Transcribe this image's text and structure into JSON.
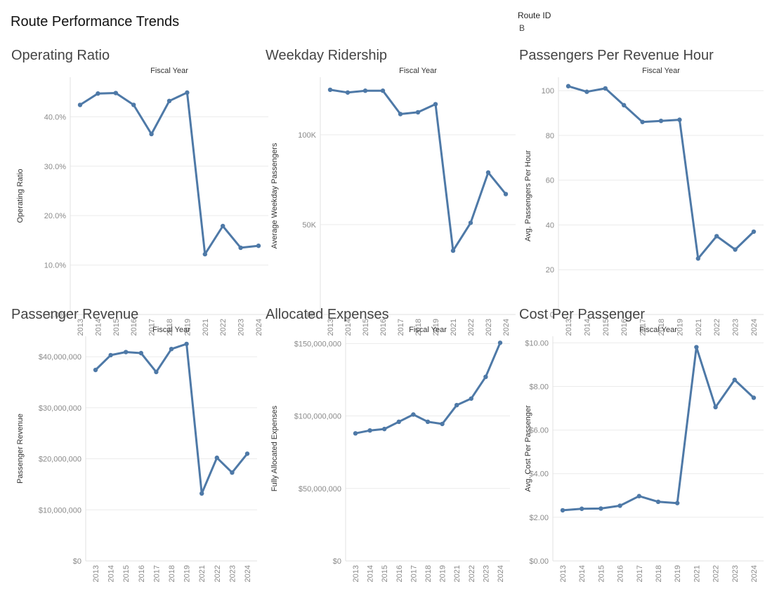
{
  "dashboard": {
    "title": "Route Performance Trends",
    "filter_label": "Route ID",
    "filter_value": "B"
  },
  "colors": {
    "series": "#4e79a7"
  },
  "chart_data": [
    {
      "id": "operating-ratio",
      "type": "line",
      "title": "Operating Ratio",
      "column_header": "Fiscal Year",
      "ylabel": "Operating Ratio",
      "x": [
        "2013",
        "2014",
        "2015",
        "2016",
        "2017",
        "2018",
        "2019",
        "2021",
        "2022",
        "2023",
        "2024"
      ],
      "values": [
        42.4,
        44.7,
        44.8,
        42.4,
        36.5,
        43.2,
        44.9,
        12.2,
        17.9,
        13.5,
        13.9
      ],
      "yticks": [
        0,
        10,
        20,
        30,
        40
      ],
      "ytick_labels": [
        "0.0%",
        "10.0%",
        "20.0%",
        "30.0%",
        "40.0%"
      ],
      "ylim": [
        0,
        48
      ]
    },
    {
      "id": "weekday-ridership",
      "type": "line",
      "title": "Weekday Ridership",
      "column_header": "Fiscal Year",
      "ylabel": "Average Weekday Passengers",
      "x": [
        "2013",
        "2014",
        "2015",
        "2016",
        "2017",
        "2018",
        "2019",
        "2021",
        "2022",
        "2023",
        "2024"
      ],
      "values": [
        125000,
        123500,
        124500,
        124500,
        111500,
        112500,
        117000,
        35500,
        51000,
        79000,
        67000
      ],
      "yticks": [
        0,
        50000,
        100000
      ],
      "ytick_labels": [
        "0K",
        "50K",
        "100K"
      ],
      "ylim": [
        0,
        132000
      ]
    },
    {
      "id": "passengers-per-revenue-hour",
      "type": "line",
      "title": "Passengers Per Revenue Hour",
      "column_header": "Fiscal Year",
      "ylabel": "Avg. Passengers Per Hour",
      "x": [
        "2013",
        "2014",
        "2015",
        "2016",
        "2017",
        "2018",
        "2019",
        "2021",
        "2022",
        "2023",
        "2024"
      ],
      "values": [
        102,
        99.5,
        101,
        93.5,
        86,
        86.5,
        87,
        25,
        35,
        29,
        37
      ],
      "yticks": [
        0,
        20,
        40,
        60,
        80,
        100
      ],
      "ytick_labels": [
        "0",
        "20",
        "40",
        "60",
        "80",
        "100"
      ],
      "ylim": [
        0,
        106
      ]
    },
    {
      "id": "passenger-revenue",
      "type": "line",
      "title": "Passenger Revenue",
      "column_header": "Fiscal Year",
      "ylabel": "Passenger Revenue",
      "x": [
        "2013",
        "2014",
        "2015",
        "2016",
        "2017",
        "2018",
        "2019",
        "2021",
        "2022",
        "2023",
        "2024"
      ],
      "values": [
        37400000,
        40300000,
        40900000,
        40700000,
        37000000,
        41500000,
        42500000,
        13200000,
        20200000,
        17300000,
        21000000
      ],
      "yticks": [
        0,
        10000000,
        20000000,
        30000000,
        40000000
      ],
      "ytick_labels": [
        "$0",
        "$10,000,000",
        "$20,000,000",
        "$30,000,000",
        "$40,000,000"
      ],
      "ylim": [
        0,
        44000000
      ]
    },
    {
      "id": "allocated-expenses",
      "type": "line",
      "title": "Allocated Expenses",
      "column_header": "Fiscal Year",
      "ylabel": "Fully Allocated Expenses",
      "x": [
        "2013",
        "2014",
        "2015",
        "2016",
        "2017",
        "2018",
        "2019",
        "2021",
        "2022",
        "2023",
        "2024"
      ],
      "values": [
        88000000,
        90000000,
        91000000,
        96000000,
        101000000,
        96000000,
        94500000,
        107500000,
        112000000,
        127000000,
        150500000
      ],
      "yticks": [
        0,
        50000000,
        100000000,
        150000000
      ],
      "ytick_labels": [
        "$0",
        "$50,000,000",
        "$100,000,000",
        "$150,000,000"
      ],
      "ylim": [
        0,
        155000000
      ]
    },
    {
      "id": "cost-per-passenger",
      "type": "line",
      "title": "Cost Per Passenger",
      "column_header": "Fiscal Year",
      "ylabel": "Avg. Cost Per Passenger",
      "x": [
        "2013",
        "2014",
        "2015",
        "2016",
        "2017",
        "2018",
        "2019",
        "2021",
        "2022",
        "2023",
        "2024"
      ],
      "values": [
        2.32,
        2.39,
        2.4,
        2.53,
        2.97,
        2.71,
        2.65,
        9.8,
        7.05,
        8.3,
        7.48
      ],
      "yticks": [
        0,
        2,
        4,
        6,
        8,
        10
      ],
      "ytick_labels": [
        "$0.00",
        "$2.00",
        "$4.00",
        "$6.00",
        "$8.00",
        "$10.00"
      ],
      "ylim": [
        0,
        10.3
      ]
    }
  ]
}
